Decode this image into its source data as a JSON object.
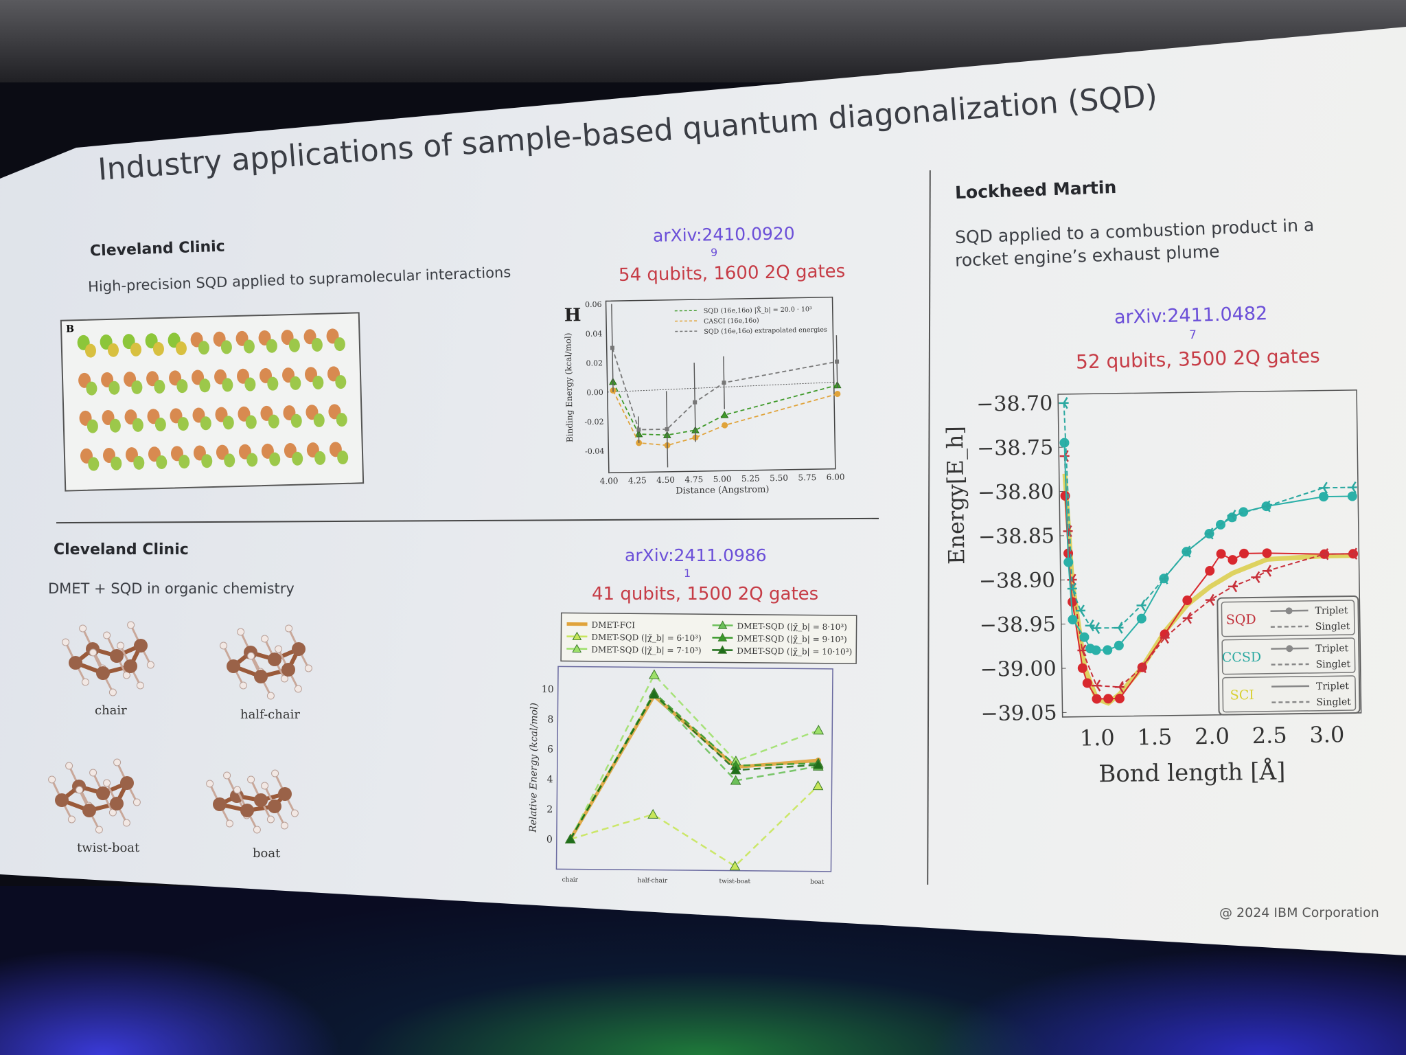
{
  "slide": {
    "title": "Industry applications of sample-based quantum diagonalization (SQD)",
    "copyright": "@ 2024 IBM Corporation"
  },
  "panel_top_left": {
    "org": "Cleveland Clinic",
    "description": "High-precision SQD applied to supramolecular interactions",
    "figure_letter": "B",
    "arxiv": "arXiv:2410.0920",
    "arxiv_overflow": "9",
    "stats": "54 qubits, 1600 2Q gates",
    "chart": {
      "type": "line",
      "panel_label": "H",
      "xlabel": "Distance (Angstrom)",
      "ylabel": "Binding Energy (kcal/mol)",
      "xlim": [
        4.0,
        6.0
      ],
      "ylim": [
        -0.055,
        0.062
      ],
      "xticks": [
        "4.00",
        "4.25",
        "4.50",
        "4.75",
        "5.00",
        "5.25",
        "5.50",
        "5.75",
        "6.00"
      ],
      "yticks": [
        "0.06",
        "0.04",
        "0.02",
        "0.00",
        "-0.02",
        "-0.04"
      ],
      "x": [
        4.05,
        4.27,
        4.52,
        4.77,
        5.03,
        6.03
      ],
      "series": [
        {
          "name": "SQD (16e,16o) |X̃_b| = 20.0 · 10³",
          "color": "#3f9a2a",
          "marker": "triangle",
          "values": [
            0.007,
            -0.029,
            -0.03,
            -0.027,
            -0.017,
            0.002
          ]
        },
        {
          "name": "CASCI (16e,16o)",
          "color": "#e0a33a",
          "marker": "circle",
          "values": [
            0.001,
            -0.035,
            -0.037,
            -0.032,
            -0.024,
            -0.004
          ]
        },
        {
          "name": "SQD (16e,16o) extrapolated energies",
          "color": "#777777",
          "marker": "errorbar",
          "values": [
            0.03,
            -0.026,
            -0.026,
            -0.008,
            0.005,
            0.018
          ],
          "errors": [
            0.03,
            0.009,
            0.026,
            0.027,
            0.018,
            0.018
          ]
        }
      ]
    }
  },
  "panel_bottom_left": {
    "org": "Cleveland Clinic",
    "description": "DMET + SQD in organic chemistry",
    "molecules": [
      "chair",
      "half-chair",
      "twist-boat",
      "boat"
    ],
    "arxiv": "arXiv:2411.0986",
    "arxiv_overflow": "1",
    "stats": "41 qubits, 1500 2Q gates",
    "chart": {
      "type": "line",
      "ylabel": "Relative Energy (kcal/mol)",
      "categories": [
        "chair",
        "half-chair",
        "twist-boat",
        "boat"
      ],
      "ylim": [
        -2,
        11.5
      ],
      "yticks": [
        "0",
        "2",
        "4",
        "6",
        "8",
        "10"
      ],
      "legend": "top",
      "series": [
        {
          "name": "DMET-FCI",
          "color": "#e0a33a",
          "values": [
            0,
            9.6,
            4.9,
            5.4
          ]
        },
        {
          "name": "DMET-SQD (|χ̃_b| = 6·10³)",
          "color": "#c8e65a",
          "values": [
            0,
            1.7,
            -1.7,
            3.7
          ]
        },
        {
          "name": "DMET-SQD (|χ̃_b| = 7·10³)",
          "color": "#9ee06a",
          "values": [
            0,
            11.0,
            5.3,
            7.4
          ]
        },
        {
          "name": "DMET-SQD (|χ̃_b| = 8·10³)",
          "color": "#6cc05a",
          "values": [
            0,
            9.7,
            4.0,
            5.0
          ]
        },
        {
          "name": "DMET-SQD (|χ̃_b| = 9·10³)",
          "color": "#3a9a2a",
          "values": [
            0,
            9.8,
            5.0,
            5.2
          ]
        },
        {
          "name": "DMET-SQD (|χ̃_b| = 10·10³)",
          "color": "#1f6e1a",
          "values": [
            0,
            9.7,
            4.7,
            5.1
          ]
        }
      ]
    }
  },
  "panel_right": {
    "org": "Lockheed Martin",
    "description_line1": "SQD applied to a combustion product in a",
    "description_line2": "rocket engine’s exhaust plume",
    "arxiv": "arXiv:2411.0482",
    "arxiv_overflow": "7",
    "stats": "52 qubits, 3500 2Q gates",
    "chart": {
      "type": "line",
      "xlabel": "Bond length [Å]",
      "ylabel": "Energy[E_h]",
      "xlim": [
        0.7,
        3.3
      ],
      "ylim": [
        -39.055,
        -38.69
      ],
      "xticks": [
        "1.0",
        "1.5",
        "2.0",
        "2.5",
        "3.0"
      ],
      "yticks": [
        "−38.70",
        "−38.75",
        "−38.80",
        "−38.85",
        "−38.90",
        "−38.95",
        "−39.00",
        "−39.05"
      ],
      "legend": {
        "groups": [
          {
            "method": "SQD",
            "color": "#c0303a",
            "entries": [
              "Triplet",
              "Singlet"
            ]
          },
          {
            "method": "CCSD",
            "color": "#2aa8a0",
            "entries": [
              "Triplet",
              "Singlet"
            ]
          },
          {
            "method": "SCI",
            "color": "#d8d030",
            "entries": [
              "Triplet",
              "Singlet"
            ]
          }
        ],
        "placement": "lower-right"
      },
      "series": [
        {
          "name": "SCI Triplet",
          "color": "#d8c830",
          "style": "solid",
          "marker": "none",
          "x": [
            0.75,
            0.8,
            0.9,
            1.0,
            1.1,
            1.2,
            1.4,
            1.6,
            1.8,
            2.0,
            2.2,
            2.5,
            3.0,
            3.25
          ],
          "y": [
            -38.78,
            -38.9,
            -39.0,
            -39.035,
            -39.04,
            -39.03,
            -39.0,
            -38.96,
            -38.93,
            -38.91,
            -38.895,
            -38.88,
            -38.877,
            -38.877
          ]
        },
        {
          "name": "SQD Triplet",
          "color": "#d8282e",
          "style": "solid",
          "marker": "circle",
          "x": [
            0.75,
            0.77,
            0.8,
            0.88,
            0.92,
            1.0,
            1.1,
            1.2,
            1.4,
            1.6,
            1.8,
            2.0,
            2.1,
            2.2,
            2.3,
            2.5,
            3.0,
            3.25
          ],
          "y": [
            -38.805,
            -38.87,
            -38.925,
            -39.0,
            -39.017,
            -39.035,
            -39.035,
            -39.035,
            -39.0,
            -38.963,
            -38.925,
            -38.892,
            -38.873,
            -38.88,
            -38.873,
            -38.873,
            -38.875,
            -38.875
          ]
        },
        {
          "name": "SQD Singlet",
          "color": "#c8303a",
          "style": "dashed",
          "marker": "tri",
          "x": [
            0.75,
            0.77,
            0.8,
            0.88,
            1.0,
            1.2,
            1.4,
            1.6,
            1.8,
            2.0,
            2.2,
            2.4,
            2.5,
            3.0,
            3.25
          ],
          "y": [
            -38.76,
            -38.845,
            -38.9,
            -38.98,
            -39.02,
            -39.022,
            -39.0,
            -38.967,
            -38.945,
            -38.925,
            -38.91,
            -38.9,
            -38.893,
            -38.875,
            -38.875
          ]
        },
        {
          "name": "CCSD Triplet",
          "color": "#2ab0a8",
          "style": "solid",
          "marker": "circle",
          "x": [
            0.75,
            0.77,
            0.8,
            0.9,
            0.95,
            1.0,
            1.1,
            1.2,
            1.4,
            1.6,
            1.8,
            2.0,
            2.1,
            2.2,
            2.3,
            2.5,
            3.0,
            3.25
          ],
          "y": [
            -38.745,
            -38.88,
            -38.945,
            -38.965,
            -38.978,
            -38.98,
            -38.98,
            -38.975,
            -38.945,
            -38.9,
            -38.87,
            -38.85,
            -38.84,
            -38.832,
            -38.826,
            -38.82,
            -38.81,
            -38.81
          ]
        },
        {
          "name": "CCSD Singlet",
          "color": "#2aa8a0",
          "style": "dashed",
          "marker": "tri",
          "x": [
            0.75,
            0.8,
            0.87,
            0.95,
            1.0,
            1.2,
            1.4,
            1.6,
            1.8,
            2.0,
            2.2,
            2.5,
            3.0,
            3.25
          ],
          "y": [
            -38.7,
            -38.91,
            -38.935,
            -38.952,
            -38.955,
            -38.955,
            -38.93,
            -38.9,
            -38.87,
            -38.85,
            -38.83,
            -38.82,
            -38.8,
            -38.8
          ]
        }
      ]
    }
  }
}
